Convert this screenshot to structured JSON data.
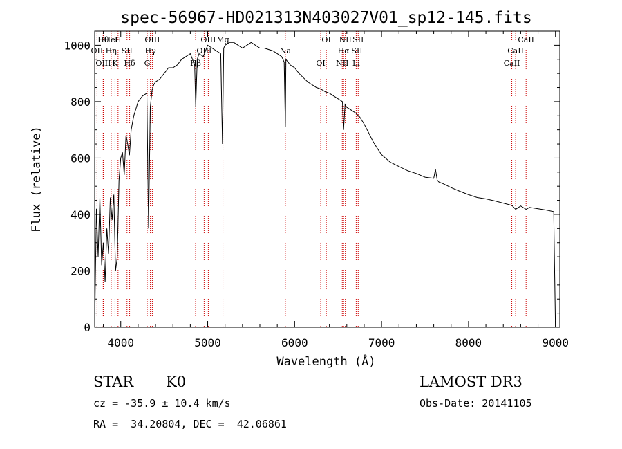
{
  "chart_data": {
    "type": "line",
    "title": "spec-56967-HD021313N403027V01_sp12-145.fits",
    "xlabel": "Wavelength (Å)",
    "ylabel": "Flux (relative)",
    "xlim": [
      3700,
      9050
    ],
    "ylim": [
      0,
      1050
    ],
    "xticks": [
      4000,
      5000,
      6000,
      7000,
      8000,
      9000
    ],
    "yticks": [
      0,
      200,
      400,
      600,
      800,
      1000
    ],
    "series": [
      {
        "name": "flux",
        "x": [
          3700,
          3720,
          3740,
          3760,
          3780,
          3800,
          3820,
          3840,
          3860,
          3880,
          3900,
          3920,
          3940,
          3960,
          3980,
          4000,
          4020,
          4040,
          4060,
          4080,
          4100,
          4120,
          4150,
          4200,
          4250,
          4300,
          4320,
          4340,
          4360,
          4380,
          4400,
          4450,
          4500,
          4550,
          4600,
          4650,
          4700,
          4750,
          4800,
          4850,
          4862,
          4880,
          4900,
          4950,
          5000,
          5050,
          5100,
          5150,
          5170,
          5184,
          5200,
          5250,
          5300,
          5350,
          5400,
          5450,
          5500,
          5550,
          5600,
          5650,
          5700,
          5750,
          5800,
          5850,
          5880,
          5893,
          5900,
          5950,
          6000,
          6050,
          6100,
          6150,
          6200,
          6250,
          6300,
          6350,
          6400,
          6450,
          6500,
          6550,
          6563,
          6580,
          6600,
          6650,
          6700,
          6750,
          6800,
          6850,
          6900,
          6950,
          7000,
          7100,
          7200,
          7300,
          7400,
          7500,
          7600,
          7620,
          7640,
          7660,
          7700,
          7800,
          7900,
          8000,
          8100,
          8200,
          8300,
          8400,
          8500,
          8542,
          8600,
          8662,
          8700,
          8800,
          8900,
          8980,
          9000
        ],
        "y": [
          0,
          420,
          250,
          460,
          220,
          300,
          160,
          350,
          260,
          460,
          380,
          470,
          200,
          250,
          520,
          600,
          620,
          540,
          680,
          650,
          610,
          700,
          750,
          800,
          820,
          830,
          350,
          780,
          840,
          860,
          870,
          880,
          900,
          920,
          920,
          930,
          950,
          960,
          970,
          930,
          780,
          950,
          970,
          960,
          1000,
          990,
          980,
          970,
          650,
          990,
          1000,
          1010,
          1010,
          1000,
          990,
          1000,
          1010,
          1000,
          990,
          990,
          985,
          980,
          970,
          960,
          940,
          710,
          950,
          930,
          920,
          900,
          885,
          870,
          860,
          850,
          845,
          835,
          830,
          820,
          810,
          800,
          700,
          790,
          780,
          770,
          760,
          745,
          720,
          690,
          660,
          635,
          612,
          585,
          570,
          555,
          545,
          532,
          528,
          560,
          522,
          515,
          510,
          495,
          482,
          470,
          460,
          455,
          448,
          440,
          432,
          418,
          430,
          418,
          425,
          420,
          415,
          410,
          0
        ]
      }
    ],
    "spectral_lines": [
      {
        "name": "Hθ",
        "wavelength": 3798
      },
      {
        "name": "OII",
        "wavelength": 3727
      },
      {
        "name": "OIII",
        "wavelength": 3799
      },
      {
        "name": "HeI",
        "wavelength": 3889
      },
      {
        "name": "Hη",
        "wavelength": 3889
      },
      {
        "name": "K",
        "wavelength": 3934
      },
      {
        "name": "H",
        "wavelength": 3969
      },
      {
        "name": "SII",
        "wavelength": 4072
      },
      {
        "name": "Hδ",
        "wavelength": 4102
      },
      {
        "name": "OIII",
        "wavelength": 4363
      },
      {
        "name": "Hγ",
        "wavelength": 4341
      },
      {
        "name": "G",
        "wavelength": 4304
      },
      {
        "name": "OIII",
        "wavelength": 5007
      },
      {
        "name": "OIII",
        "wavelength": 4959
      },
      {
        "name": "Hβ",
        "wavelength": 4861
      },
      {
        "name": "Mg",
        "wavelength": 5175
      },
      {
        "name": "Na",
        "wavelength": 5893
      },
      {
        "name": "OI",
        "wavelength": 6300
      },
      {
        "name": "OI",
        "wavelength": 6364
      },
      {
        "name": "Hα",
        "wavelength": 6563
      },
      {
        "name": "NII",
        "wavelength": 6548
      },
      {
        "name": "NII",
        "wavelength": 6583
      },
      {
        "name": "SII",
        "wavelength": 6717
      },
      {
        "name": "Li",
        "wavelength": 6708
      },
      {
        "name": "SII",
        "wavelength": 6731
      },
      {
        "name": "CaII",
        "wavelength": 8542
      },
      {
        "name": "CaII",
        "wavelength": 8498
      },
      {
        "name": "CaII",
        "wavelength": 8662
      }
    ]
  },
  "info": {
    "object_type": "STAR",
    "subclass": "K0",
    "cz": "cz = -35.9 ± 10.4 km/s",
    "coords": "RA =  34.20804, DEC =  42.06861",
    "survey": "LAMOST DR3",
    "obs_date": "Obs-Date: 20141105"
  }
}
